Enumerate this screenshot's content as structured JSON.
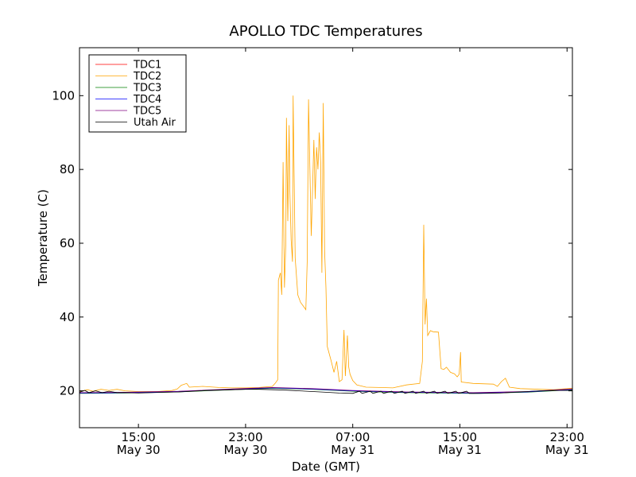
{
  "chart_data": {
    "type": "line",
    "title": "APOLLO TDC Temperatures",
    "xlabel": "Date (GMT)",
    "ylabel": "Temperature (C)",
    "xlim": [
      10.6,
      47.4
    ],
    "ylim": [
      10,
      113
    ],
    "x_unit": "hours since May 30 00:00 GMT",
    "x_ticks": [
      {
        "x": 15,
        "time": "15:00",
        "date": "May 30"
      },
      {
        "x": 23,
        "time": "23:00",
        "date": "May 30"
      },
      {
        "x": 31,
        "time": "07:00",
        "date": "May 31"
      },
      {
        "x": 39,
        "time": "15:00",
        "date": "May 31"
      },
      {
        "x": 47,
        "time": "23:00",
        "date": "May 31"
      }
    ],
    "y_ticks": [
      20,
      40,
      60,
      80,
      100
    ],
    "legend_position": "top-left",
    "series": [
      {
        "name": "TDC1",
        "color": "#ff0000",
        "points": [
          [
            10.6,
            19.4
          ],
          [
            14,
            19.5
          ],
          [
            18,
            19.8
          ],
          [
            22,
            20.4
          ],
          [
            25,
            20.8
          ],
          [
            28,
            20.5
          ],
          [
            31,
            20.0
          ],
          [
            35,
            19.6
          ],
          [
            40,
            19.4
          ],
          [
            44,
            19.7
          ],
          [
            47.4,
            20.4
          ]
        ]
      },
      {
        "name": "TDC2",
        "color": "#ffa500",
        "points": [
          [
            10.6,
            19.8
          ],
          [
            11.2,
            20.3
          ],
          [
            11.6,
            19.9
          ],
          [
            12.2,
            20.4
          ],
          [
            12.8,
            20.1
          ],
          [
            13.4,
            20.4
          ],
          [
            14,
            20.0
          ],
          [
            15,
            19.8
          ],
          [
            16.4,
            19.8
          ],
          [
            17.5,
            20.1
          ],
          [
            17.9,
            20.5
          ],
          [
            18.2,
            21.5
          ],
          [
            18.6,
            22.0
          ],
          [
            18.8,
            21.0
          ],
          [
            19.8,
            21.2
          ],
          [
            21,
            20.9
          ],
          [
            22,
            20.8
          ],
          [
            23,
            20.8
          ],
          [
            24,
            20.9
          ],
          [
            25.0,
            21.2
          ],
          [
            25.2,
            22.0
          ],
          [
            25.4,
            23.0
          ],
          [
            25.45,
            50
          ],
          [
            25.6,
            52
          ],
          [
            25.7,
            46
          ],
          [
            25.8,
            82
          ],
          [
            25.9,
            48
          ],
          [
            26.0,
            60
          ],
          [
            26.05,
            94
          ],
          [
            26.15,
            66
          ],
          [
            26.25,
            92
          ],
          [
            26.3,
            75
          ],
          [
            26.4,
            61
          ],
          [
            26.5,
            55
          ],
          [
            26.55,
            100
          ],
          [
            26.7,
            56
          ],
          [
            26.9,
            46
          ],
          [
            27.1,
            44
          ],
          [
            27.3,
            43
          ],
          [
            27.5,
            42
          ],
          [
            27.6,
            55
          ],
          [
            27.7,
            99
          ],
          [
            27.8,
            80
          ],
          [
            27.9,
            62
          ],
          [
            28.0,
            75
          ],
          [
            28.1,
            88
          ],
          [
            28.2,
            72
          ],
          [
            28.3,
            86
          ],
          [
            28.4,
            80
          ],
          [
            28.5,
            90
          ],
          [
            28.6,
            82
          ],
          [
            28.7,
            52
          ],
          [
            28.8,
            98
          ],
          [
            28.9,
            58
          ],
          [
            29.0,
            48
          ],
          [
            29.1,
            32
          ],
          [
            29.4,
            28
          ],
          [
            29.6,
            25
          ],
          [
            29.8,
            28
          ],
          [
            30.0,
            22.5
          ],
          [
            30.2,
            23.0
          ],
          [
            30.35,
            36.5
          ],
          [
            30.45,
            24
          ],
          [
            30.6,
            35
          ],
          [
            30.7,
            26.5
          ],
          [
            30.8,
            24.5
          ],
          [
            31.0,
            22.8
          ],
          [
            31.3,
            21.6
          ],
          [
            32,
            21.0
          ],
          [
            33,
            20.9
          ],
          [
            34,
            20.8
          ],
          [
            35,
            21.6
          ],
          [
            36.0,
            22.0
          ],
          [
            36.2,
            28.0
          ],
          [
            36.3,
            65.0
          ],
          [
            36.4,
            38
          ],
          [
            36.5,
            45
          ],
          [
            36.6,
            35
          ],
          [
            36.8,
            36.3
          ],
          [
            37.0,
            36.0
          ],
          [
            37.4,
            35.9
          ],
          [
            37.6,
            26.0
          ],
          [
            37.8,
            25.8
          ],
          [
            38,
            26.4
          ],
          [
            38.3,
            25.0
          ],
          [
            38.6,
            24.6
          ],
          [
            38.8,
            23.8
          ],
          [
            38.95,
            24.5
          ],
          [
            39.05,
            30.5
          ],
          [
            39.1,
            22.4
          ],
          [
            40,
            22.0
          ],
          [
            41.5,
            21.8
          ],
          [
            41.8,
            21.2
          ],
          [
            42.1,
            22.5
          ],
          [
            42.4,
            23.4
          ],
          [
            42.7,
            21.0
          ],
          [
            43.5,
            20.6
          ],
          [
            45,
            20.4
          ],
          [
            46,
            20.3
          ],
          [
            47.4,
            20.7
          ]
        ]
      },
      {
        "name": "TDC3",
        "color": "#008000",
        "points": [
          [
            10.6,
            19.3
          ],
          [
            14,
            19.4
          ],
          [
            18,
            19.7
          ],
          [
            22,
            20.3
          ],
          [
            25,
            20.7
          ],
          [
            28,
            20.4
          ],
          [
            31,
            19.9
          ],
          [
            35,
            19.5
          ],
          [
            40,
            19.3
          ],
          [
            44,
            19.6
          ],
          [
            47.4,
            20.3
          ]
        ]
      },
      {
        "name": "TDC4",
        "color": "#0000ff",
        "points": [
          [
            10.6,
            19.4
          ],
          [
            14,
            19.5
          ],
          [
            18,
            19.8
          ],
          [
            22,
            20.4
          ],
          [
            25,
            20.8
          ],
          [
            28,
            20.5
          ],
          [
            31,
            20.0
          ],
          [
            35,
            19.6
          ],
          [
            40,
            19.4
          ],
          [
            44,
            19.7
          ],
          [
            47.4,
            20.4
          ]
        ]
      },
      {
        "name": "TDC5",
        "color": "#800080",
        "points": [
          [
            10.6,
            19.5
          ],
          [
            14,
            19.6
          ],
          [
            18,
            19.9
          ],
          [
            22,
            20.5
          ],
          [
            25,
            20.9
          ],
          [
            28,
            20.6
          ],
          [
            31,
            20.1
          ],
          [
            35,
            19.7
          ],
          [
            40,
            19.5
          ],
          [
            44,
            19.8
          ],
          [
            47.4,
            20.5
          ]
        ]
      },
      {
        "name": "Utah Air",
        "color": "#000000",
        "points": [
          [
            10.6,
            19.6
          ],
          [
            11,
            20.1
          ],
          [
            11.3,
            19.5
          ],
          [
            11.8,
            20.0
          ],
          [
            12.3,
            19.5
          ],
          [
            12.8,
            19.9
          ],
          [
            13.4,
            19.5
          ],
          [
            14,
            19.5
          ],
          [
            15,
            19.4
          ],
          [
            16,
            19.5
          ],
          [
            17,
            19.6
          ],
          [
            18,
            19.7
          ],
          [
            19,
            19.9
          ],
          [
            20,
            20.1
          ],
          [
            21,
            20.2
          ],
          [
            22,
            20.3
          ],
          [
            23,
            20.4
          ],
          [
            24,
            20.4
          ],
          [
            25,
            20.3
          ],
          [
            26,
            20.2
          ],
          [
            27,
            20.0
          ],
          [
            28,
            19.8
          ],
          [
            29,
            19.6
          ],
          [
            30,
            19.4
          ],
          [
            31,
            19.3
          ],
          [
            31.5,
            19.9
          ],
          [
            31.7,
            19.3
          ],
          [
            32.3,
            19.9
          ],
          [
            32.5,
            19.3
          ],
          [
            33.1,
            19.9
          ],
          [
            33.3,
            19.3
          ],
          [
            33.9,
            19.9
          ],
          [
            34.1,
            19.3
          ],
          [
            34.7,
            19.9
          ],
          [
            34.9,
            19.3
          ],
          [
            35.5,
            19.9
          ],
          [
            35.7,
            19.3
          ],
          [
            36.3,
            19.9
          ],
          [
            36.5,
            19.3
          ],
          [
            37.1,
            19.9
          ],
          [
            37.3,
            19.3
          ],
          [
            37.9,
            19.9
          ],
          [
            38.1,
            19.3
          ],
          [
            38.7,
            19.9
          ],
          [
            38.9,
            19.3
          ],
          [
            39.5,
            19.9
          ],
          [
            39.7,
            19.3
          ],
          [
            40.5,
            19.3
          ],
          [
            42,
            19.4
          ],
          [
            43,
            19.6
          ],
          [
            44,
            19.8
          ],
          [
            45,
            20.0
          ],
          [
            46,
            20.1
          ],
          [
            47.4,
            20.1
          ]
        ]
      }
    ]
  }
}
